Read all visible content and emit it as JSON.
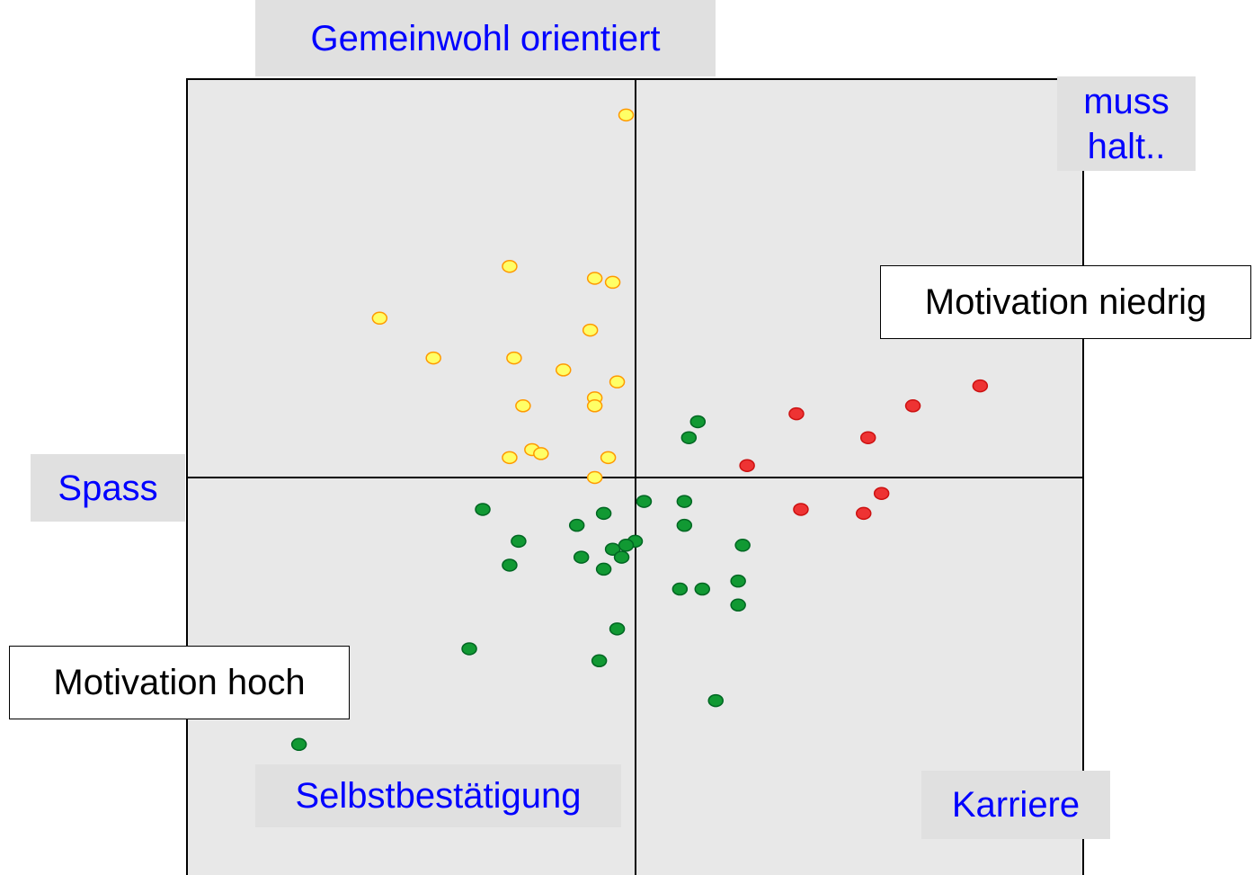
{
  "chart_data": {
    "type": "scatter",
    "annotations": [
      "Gemeinwohl orientiert",
      "muss halt..",
      "Motivation niedrig",
      "Spass",
      "Motivation hoch",
      "Selbstbestätigung",
      "Karriere"
    ],
    "xlim": [
      -1,
      1
    ],
    "ylim": [
      -1,
      1
    ],
    "series": [
      {
        "color": "#ffff66",
        "x": [
          -0.02,
          -0.28,
          -0.09,
          -0.05,
          -0.57,
          -0.1,
          -0.45,
          -0.27,
          -0.16,
          -0.04,
          -0.09,
          -0.09,
          -0.25,
          -0.23,
          -0.21,
          -0.28,
          -0.06,
          -0.09
        ],
        "values": [
          0.91,
          0.53,
          0.5,
          0.49,
          0.4,
          0.37,
          0.3,
          0.3,
          0.27,
          0.24,
          0.2,
          0.18,
          0.18,
          0.07,
          0.06,
          0.05,
          0.05,
          0.0
        ]
      },
      {
        "color": "#119933",
        "x": [
          0.14,
          0.12,
          0.02,
          0.11,
          -0.34,
          -0.07,
          -0.13,
          0.11,
          -0.26,
          0.0,
          -0.02,
          -0.05,
          0.24,
          -0.12,
          -0.03,
          -0.28,
          -0.07,
          0.23,
          0.15,
          0.1,
          0.23,
          -0.04,
          -0.37,
          -0.08,
          0.18,
          -0.75
        ],
        "values": [
          0.14,
          0.1,
          -0.06,
          -0.06,
          -0.08,
          -0.09,
          -0.12,
          -0.12,
          -0.16,
          -0.16,
          -0.17,
          -0.18,
          -0.17,
          -0.2,
          -0.2,
          -0.22,
          -0.23,
          -0.26,
          -0.28,
          -0.28,
          -0.32,
          -0.38,
          -0.43,
          -0.46,
          -0.56,
          -0.67
        ]
      },
      {
        "color": "#ee3333",
        "x": [
          0.77,
          0.62,
          0.36,
          0.52,
          0.25,
          0.55,
          0.37,
          0.51
        ],
        "values": [
          0.23,
          0.18,
          0.16,
          0.1,
          0.03,
          -0.04,
          -0.08,
          -0.09
        ]
      }
    ]
  }
}
